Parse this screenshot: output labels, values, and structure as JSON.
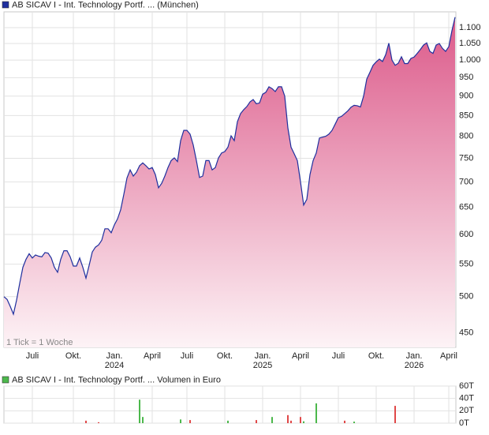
{
  "chart_data": [
    {
      "type": "area",
      "log": true,
      "grid": true,
      "note": "1 Tick = 1 Woche",
      "ylim": [
        431,
        1152
      ],
      "yticks": [
        450,
        500,
        550,
        600,
        650,
        700,
        750,
        800,
        850,
        900,
        950,
        {
          "value": 1000,
          "label": "1.000"
        },
        {
          "value": 1050,
          "label": "1.050"
        },
        {
          "value": 1100,
          "label": "1.100"
        }
      ],
      "categories": [
        null,
        null,
        null,
        null,
        null,
        null,
        null,
        null,
        null,
        "Juli",
        null,
        null,
        null,
        null,
        null,
        null,
        null,
        null,
        null,
        null,
        null,
        null,
        "Okt.",
        null,
        null,
        null,
        null,
        null,
        null,
        null,
        null,
        null,
        null,
        null,
        null,
        "Jan.",
        null,
        null,
        null,
        null,
        null,
        null,
        null,
        null,
        null,
        null,
        null,
        "April",
        null,
        null,
        null,
        null,
        null,
        null,
        null,
        null,
        null,
        null,
        "Juli",
        null,
        null,
        null,
        null,
        null,
        null,
        null,
        null,
        null,
        null,
        null,
        "Okt.",
        null,
        null,
        null,
        null,
        null,
        null,
        null,
        null,
        null,
        null,
        null,
        "Jan.",
        null,
        null,
        null,
        null,
        null,
        null,
        null,
        null,
        null,
        null,
        null,
        "April",
        null,
        null,
        null,
        null,
        null,
        null,
        null,
        null,
        null,
        null,
        null,
        "Juli",
        null,
        null,
        null,
        null,
        null,
        null,
        null,
        null,
        null,
        null,
        null,
        "Okt.",
        null,
        null,
        null,
        null,
        null,
        null,
        null,
        null,
        null,
        null,
        null,
        "Jan.",
        null,
        null,
        null,
        null,
        null,
        null,
        null,
        null,
        null,
        null,
        "April",
        null,
        null
      ],
      "category_years": [
        null,
        null,
        null,
        null,
        null,
        null,
        null,
        null,
        null,
        null,
        null,
        null,
        null,
        null,
        null,
        null,
        null,
        null,
        null,
        null,
        null,
        null,
        null,
        null,
        null,
        null,
        null,
        null,
        null,
        null,
        null,
        null,
        null,
        null,
        null,
        "2024",
        null,
        null,
        null,
        null,
        null,
        null,
        null,
        null,
        null,
        null,
        null,
        null,
        null,
        null,
        null,
        null,
        null,
        null,
        null,
        null,
        null,
        null,
        null,
        null,
        null,
        null,
        null,
        null,
        null,
        null,
        null,
        null,
        null,
        null,
        null,
        null,
        null,
        null,
        null,
        null,
        null,
        null,
        null,
        null,
        null,
        null,
        "2025",
        null,
        null,
        null,
        null,
        null,
        null,
        null,
        null,
        null,
        null,
        null,
        null,
        null,
        null,
        null,
        null,
        null,
        null,
        null,
        null,
        null,
        null,
        null,
        null,
        null,
        null,
        null,
        null,
        null,
        null,
        null,
        null,
        null,
        null,
        null,
        null,
        null,
        null,
        null,
        null,
        null,
        null,
        null,
        null,
        null,
        null,
        null,
        "2026",
        null,
        null,
        null,
        null,
        null,
        null,
        null,
        null,
        null,
        null,
        null,
        null,
        null
      ],
      "series": [
        {
          "name": "AB SICAV I - Int. Technology Portf. ... (München)",
          "color": "#1f2f9e",
          "values": [
            500,
            496,
            486,
            475,
            495,
            520,
            545,
            558,
            567,
            560,
            565,
            563,
            562,
            569,
            568,
            560,
            545,
            537,
            558,
            572,
            572,
            562,
            547,
            547,
            560,
            545,
            528,
            548,
            570,
            578,
            582,
            590,
            610,
            610,
            603,
            617,
            628,
            645,
            675,
            708,
            725,
            712,
            720,
            734,
            740,
            734,
            727,
            730,
            715,
            688,
            697,
            712,
            730,
            745,
            751,
            743,
            790,
            814,
            814,
            805,
            780,
            745,
            709,
            712,
            745,
            745,
            725,
            730,
            751,
            762,
            765,
            775,
            801,
            790,
            835,
            855,
            865,
            873,
            885,
            891,
            880,
            882,
            905,
            910,
            925,
            920,
            912,
            925,
            925,
            900,
            820,
            775,
            760,
            745,
            700,
            654,
            665,
            715,
            745,
            762,
            796,
            798,
            800,
            805,
            814,
            829,
            845,
            848,
            855,
            862,
            871,
            876,
            875,
            872,
            900,
            946,
            965,
            985,
            995,
            1003,
            996,
            1016,
            1051,
            1000,
            985,
            991,
            1010,
            990,
            990,
            1005,
            1009,
            1020,
            1032,
            1045,
            1052,
            1026,
            1020,
            1045,
            1050,
            1035,
            1026,
            1040,
            1090,
            1134
          ]
        }
      ]
    },
    {
      "type": "bar",
      "grid": true,
      "ylim": [
        0,
        60000
      ],
      "yticks": [
        {
          "value": 0,
          "label": "0T"
        },
        {
          "value": 20000,
          "label": "20T"
        },
        {
          "value": 40000,
          "label": "40T"
        },
        {
          "value": 60000,
          "label": "60T"
        }
      ],
      "series": [
        {
          "name": "AB SICAV I - Int. Technology Portf. ... Volumen in Euro",
          "color": "#4cb84c",
          "values": [
            null,
            null,
            null,
            null,
            null,
            null,
            null,
            null,
            null,
            null,
            null,
            null,
            null,
            null,
            null,
            null,
            null,
            null,
            null,
            null,
            null,
            null,
            null,
            null,
            null,
            null,
            null,
            null,
            null,
            null,
            null,
            null,
            null,
            null,
            null,
            null,
            null,
            null,
            null,
            null,
            null,
            null,
            null,
            38000,
            10000,
            null,
            null,
            null,
            null,
            null,
            null,
            null,
            null,
            null,
            null,
            null,
            6000,
            null,
            null,
            null,
            null,
            null,
            null,
            null,
            null,
            null,
            null,
            null,
            null,
            null,
            null,
            4000,
            null,
            null,
            null,
            null,
            null,
            null,
            null,
            null,
            null,
            null,
            null,
            null,
            null,
            10000,
            null,
            null,
            null,
            null,
            null,
            null,
            null,
            null,
            null,
            3000,
            null,
            null,
            null,
            32000,
            null,
            null,
            null,
            null,
            null,
            null,
            null,
            null,
            null,
            null,
            null,
            2500,
            null,
            null,
            null,
            null,
            null,
            null,
            null,
            null,
            null,
            null,
            null,
            null,
            null,
            null,
            null,
            null,
            null,
            null,
            null,
            null,
            null,
            null,
            null,
            null,
            null,
            null,
            null,
            null,
            null,
            null,
            null,
            null
          ]
        },
        {
          "color": "#e04848",
          "values": [
            null,
            null,
            null,
            null,
            null,
            null,
            null,
            null,
            null,
            null,
            null,
            null,
            null,
            null,
            null,
            null,
            null,
            null,
            null,
            null,
            null,
            null,
            null,
            null,
            null,
            null,
            4000,
            null,
            null,
            null,
            1500,
            null,
            null,
            null,
            null,
            null,
            null,
            null,
            null,
            null,
            null,
            null,
            null,
            null,
            null,
            null,
            null,
            null,
            null,
            null,
            null,
            null,
            null,
            null,
            null,
            null,
            null,
            null,
            null,
            5000,
            null,
            null,
            null,
            null,
            null,
            null,
            null,
            null,
            null,
            null,
            null,
            null,
            null,
            null,
            null,
            null,
            null,
            null,
            null,
            null,
            5000,
            null,
            null,
            null,
            null,
            null,
            null,
            null,
            null,
            null,
            13000,
            4000,
            null,
            null,
            10000,
            null,
            null,
            null,
            null,
            null,
            null,
            null,
            null,
            null,
            null,
            null,
            null,
            null,
            4000,
            null,
            null,
            null,
            null,
            null,
            null,
            null,
            null,
            null,
            null,
            null,
            null,
            null,
            null,
            null,
            28000,
            null,
            null,
            null,
            null,
            null,
            null,
            null,
            null,
            null,
            null,
            null,
            null,
            null,
            null,
            null,
            null,
            null,
            null,
            null
          ]
        }
      ]
    }
  ]
}
